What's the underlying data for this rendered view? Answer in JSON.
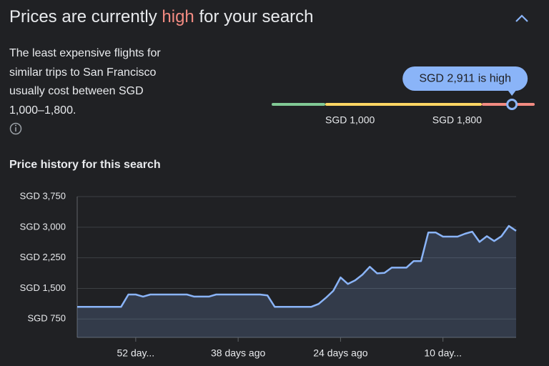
{
  "header": {
    "title_parts": [
      "Prices are currently",
      "high",
      "for your search"
    ]
  },
  "description": "The least expensive flights for similar trips to San Francisco usually cost between SGD 1,000–1,800.",
  "range": {
    "ticks": [
      {
        "value": 1000,
        "label": "SGD 1,000"
      },
      {
        "value": 1800,
        "label": "SGD 1,800"
      }
    ],
    "current": {
      "value": 2911,
      "label": "SGD 2,911 is high"
    }
  },
  "chart_data": {
    "type": "area",
    "title": "Price history for this search",
    "color": "#8ab4f8",
    "grid": true,
    "x": [
      60,
      59,
      58,
      57,
      56,
      55,
      54,
      53,
      52,
      51,
      50,
      49,
      48,
      47,
      46,
      45,
      44,
      43,
      42,
      41,
      40,
      39,
      38,
      37,
      36,
      35,
      34,
      33,
      32,
      31,
      30,
      29,
      28,
      27,
      26,
      25,
      24,
      23,
      22,
      21,
      20,
      19,
      18,
      17,
      16,
      15,
      14,
      13,
      12,
      11,
      10,
      9,
      8,
      7,
      6,
      5,
      4,
      3,
      2,
      1,
      0
    ],
    "values": [
      1050,
      1050,
      1050,
      1050,
      1050,
      1050,
      1050,
      1350,
      1350,
      1300,
      1350,
      1350,
      1350,
      1350,
      1350,
      1350,
      1300,
      1300,
      1300,
      1350,
      1350,
      1350,
      1350,
      1350,
      1350,
      1350,
      1330,
      1050,
      1050,
      1050,
      1050,
      1050,
      1050,
      1120,
      1270,
      1440,
      1770,
      1610,
      1700,
      1840,
      2030,
      1870,
      1880,
      2010,
      2010,
      2010,
      2170,
      2170,
      2870,
      2870,
      2770,
      2770,
      2770,
      2840,
      2890,
      2640,
      2780,
      2660,
      2780,
      3030,
      2911
    ],
    "xlim": [
      60,
      0
    ],
    "xticks": [
      {
        "value": 52,
        "label": "52 day..."
      },
      {
        "value": 38,
        "label": "38 days ago"
      },
      {
        "value": 24,
        "label": "24 days ago"
      },
      {
        "value": 10,
        "label": "10 day..."
      }
    ],
    "ylim": [
      300,
      3750
    ],
    "yticks": [
      {
        "value": 750,
        "label": "SGD 750"
      },
      {
        "value": 1500,
        "label": "SGD 1,500"
      },
      {
        "value": 2250,
        "label": "SGD 2,250"
      },
      {
        "value": 3000,
        "label": "SGD 3,000"
      },
      {
        "value": 3750,
        "label": "SGD 3,750"
      }
    ]
  }
}
